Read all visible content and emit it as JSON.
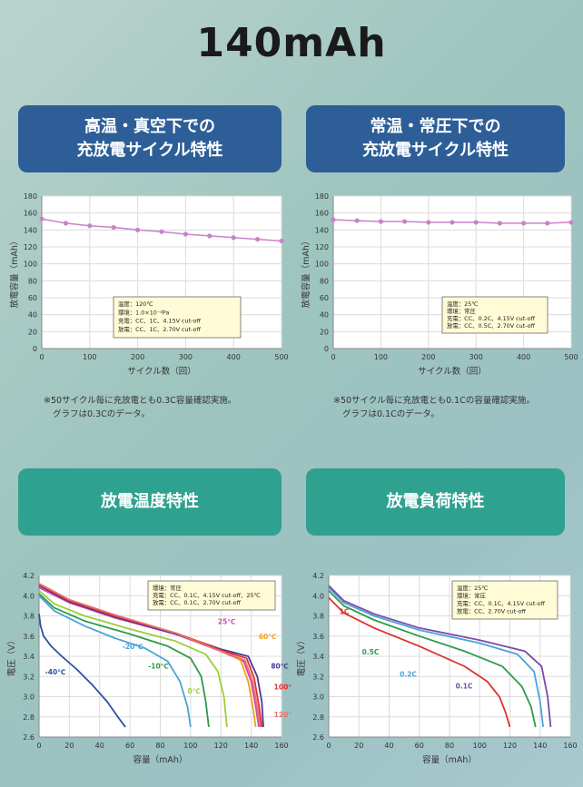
{
  "page": {
    "title": "140mAh",
    "sections": {
      "high_temp_vacuum": {
        "line1": "高温・真空下での",
        "line2": "充放電サイクル特性"
      },
      "normal": {
        "line1": "常温・常圧下での",
        "line2": "充放電サイクル特性"
      },
      "discharge_temp": {
        "label": "放電温度特性"
      },
      "discharge_load": {
        "label": "放電負荷特性"
      }
    },
    "notes": {
      "left": [
        "※50サイクル毎に充放電とも0.3C容量確認実施。",
        "グラフは0.3Cのデータ。"
      ],
      "right": [
        "※50サイクル毎に充放電とも0.1Cの容量確認実施。",
        "グラフは0.1Cのデータ。"
      ]
    }
  },
  "chart_data": [
    {
      "id": "cycle_high_temp",
      "type": "line",
      "xlabel": "サイクル数（回）",
      "ylabel": "放電容量（mAh）",
      "xlim": [
        0,
        500
      ],
      "ylim": [
        0,
        180
      ],
      "xticks": [
        0,
        100,
        200,
        300,
        400,
        500
      ],
      "yticks": [
        0,
        20,
        40,
        60,
        80,
        100,
        120,
        140,
        160,
        180
      ],
      "grid": true,
      "color": "#c883c8",
      "x": [
        0,
        50,
        100,
        150,
        200,
        250,
        300,
        350,
        400,
        450,
        500
      ],
      "y": [
        153,
        148,
        145,
        143,
        140,
        138,
        135,
        133,
        131,
        129,
        127
      ],
      "legend_box": [
        "温度：120℃",
        "環境：1.0×10⁻²Pa",
        "充電：CC、1C、4.15V cut-off",
        "放電：CC、1C、2.70V cut-off"
      ]
    },
    {
      "id": "cycle_normal",
      "type": "line",
      "xlabel": "サイクル数（回）",
      "ylabel": "放電容量（mAh）",
      "xlim": [
        0,
        500
      ],
      "ylim": [
        0,
        180
      ],
      "xticks": [
        0,
        100,
        200,
        300,
        400,
        500
      ],
      "yticks": [
        0,
        20,
        40,
        60,
        80,
        100,
        120,
        140,
        160,
        180
      ],
      "grid": true,
      "color": "#c883c8",
      "x": [
        0,
        50,
        100,
        150,
        200,
        250,
        300,
        350,
        400,
        450,
        500
      ],
      "y": [
        152,
        151,
        150,
        150,
        149,
        149,
        149,
        148,
        148,
        148,
        149
      ],
      "legend_box": [
        "温度：25℃",
        "環境：常圧",
        "充電：CC、0.2C、4.15V cut-off",
        "放電：CC、0.5C、2.70V cut-off"
      ]
    },
    {
      "id": "discharge_temperature",
      "type": "line",
      "xlabel": "容量（mAh）",
      "ylabel": "電圧（V）",
      "xlim": [
        0,
        160
      ],
      "ylim": [
        2.6,
        4.2
      ],
      "xticks": [
        0,
        20,
        40,
        60,
        80,
        100,
        120,
        140,
        160
      ],
      "yticks": [
        2.6,
        2.8,
        3.0,
        3.2,
        3.4,
        3.6,
        3.8,
        4.0,
        4.2
      ],
      "grid": true,
      "legend_box": [
        "環境：常圧",
        "充電：CC、0.1C、4.15V cut-off、25℃",
        "放電：CC、0.1C、2.70V cut-off"
      ],
      "series": [
        {
          "name": "-40℃",
          "color": "#2f4fa0",
          "x": [
            0,
            1,
            3,
            8,
            15,
            25,
            35,
            45,
            52,
            57
          ],
          "y": [
            3.82,
            3.7,
            3.6,
            3.5,
            3.4,
            3.27,
            3.12,
            2.95,
            2.8,
            2.7
          ]
        },
        {
          "name": "-20℃",
          "color": "#4aa3d8",
          "x": [
            0,
            10,
            30,
            50,
            70,
            85,
            93,
            98,
            100
          ],
          "y": [
            4.0,
            3.85,
            3.7,
            3.58,
            3.48,
            3.35,
            3.15,
            2.9,
            2.7
          ]
        },
        {
          "name": "-10℃",
          "color": "#2e9a4c",
          "x": [
            0,
            10,
            30,
            60,
            85,
            100,
            107,
            110,
            112
          ],
          "y": [
            4.02,
            3.88,
            3.75,
            3.62,
            3.5,
            3.38,
            3.2,
            2.95,
            2.7
          ]
        },
        {
          "name": "0℃",
          "color": "#9ccf3a",
          "x": [
            0,
            10,
            30,
            60,
            90,
            110,
            118,
            122,
            124
          ],
          "y": [
            4.05,
            3.92,
            3.8,
            3.67,
            3.55,
            3.42,
            3.25,
            3.0,
            2.7
          ]
        },
        {
          "name": "25℃",
          "color": "#d24aa8",
          "x": [
            0,
            20,
            50,
            90,
            120,
            135,
            140,
            143,
            145
          ],
          "y": [
            4.08,
            3.93,
            3.78,
            3.62,
            3.45,
            3.35,
            3.15,
            2.9,
            2.7
          ]
        },
        {
          "name": "60℃",
          "color": "#f0a020",
          "x": [
            0,
            20,
            50,
            90,
            120,
            133,
            138,
            141,
            143
          ],
          "y": [
            4.1,
            3.95,
            3.8,
            3.63,
            3.47,
            3.36,
            3.15,
            2.9,
            2.7
          ]
        },
        {
          "name": "80℃",
          "color": "#4b3a90",
          "x": [
            0,
            20,
            50,
            90,
            120,
            138,
            144,
            147,
            148
          ],
          "y": [
            4.1,
            3.94,
            3.79,
            3.62,
            3.47,
            3.4,
            3.2,
            2.95,
            2.7
          ]
        },
        {
          "name": "100℃",
          "color": "#e03030",
          "x": [
            0,
            20,
            50,
            90,
            120,
            137,
            142,
            145,
            147
          ],
          "y": [
            4.11,
            3.95,
            3.8,
            3.63,
            3.46,
            3.38,
            3.18,
            2.92,
            2.7
          ]
        },
        {
          "name": "120℃",
          "color": "#e87070",
          "x": [
            0,
            20,
            50,
            90,
            120,
            136,
            141,
            144,
            146
          ],
          "y": [
            4.12,
            3.96,
            3.81,
            3.63,
            3.45,
            3.36,
            3.15,
            2.9,
            2.7
          ]
        }
      ]
    },
    {
      "id": "discharge_load",
      "type": "line",
      "xlabel": "容量（mAh）",
      "ylabel": "電圧（V）",
      "xlim": [
        0,
        160
      ],
      "ylim": [
        2.6,
        4.2
      ],
      "xticks": [
        0,
        20,
        40,
        60,
        80,
        100,
        120,
        140,
        160
      ],
      "yticks": [
        2.6,
        2.8,
        3.0,
        3.2,
        3.4,
        3.6,
        3.8,
        4.0,
        4.2
      ],
      "grid": true,
      "legend_box": [
        "温度：25℃",
        "環境：常圧",
        "充電：CC、0.1C、4.15V cut-off",
        "放電：CC、2.70V cut-off"
      ],
      "series": [
        {
          "name": "1C",
          "color": "#e03030",
          "x": [
            0,
            10,
            30,
            60,
            90,
            105,
            113,
            117,
            120
          ],
          "y": [
            3.98,
            3.83,
            3.68,
            3.5,
            3.3,
            3.15,
            3.0,
            2.85,
            2.7
          ]
        },
        {
          "name": "0.5C",
          "color": "#2e9a4c",
          "x": [
            0,
            10,
            30,
            60,
            90,
            115,
            128,
            134,
            137
          ],
          "y": [
            4.05,
            3.9,
            3.76,
            3.6,
            3.45,
            3.3,
            3.1,
            2.9,
            2.7
          ]
        },
        {
          "name": "0.2C",
          "color": "#4aa3d8",
          "x": [
            0,
            10,
            30,
            60,
            100,
            125,
            136,
            140,
            142
          ],
          "y": [
            4.08,
            3.93,
            3.8,
            3.66,
            3.53,
            3.42,
            3.25,
            2.95,
            2.7
          ]
        },
        {
          "name": "0.1C",
          "color": "#7a4aa8",
          "x": [
            0,
            10,
            30,
            60,
            100,
            130,
            141,
            145,
            147
          ],
          "y": [
            4.1,
            3.95,
            3.82,
            3.68,
            3.56,
            3.45,
            3.3,
            3.0,
            2.7
          ]
        }
      ]
    }
  ]
}
